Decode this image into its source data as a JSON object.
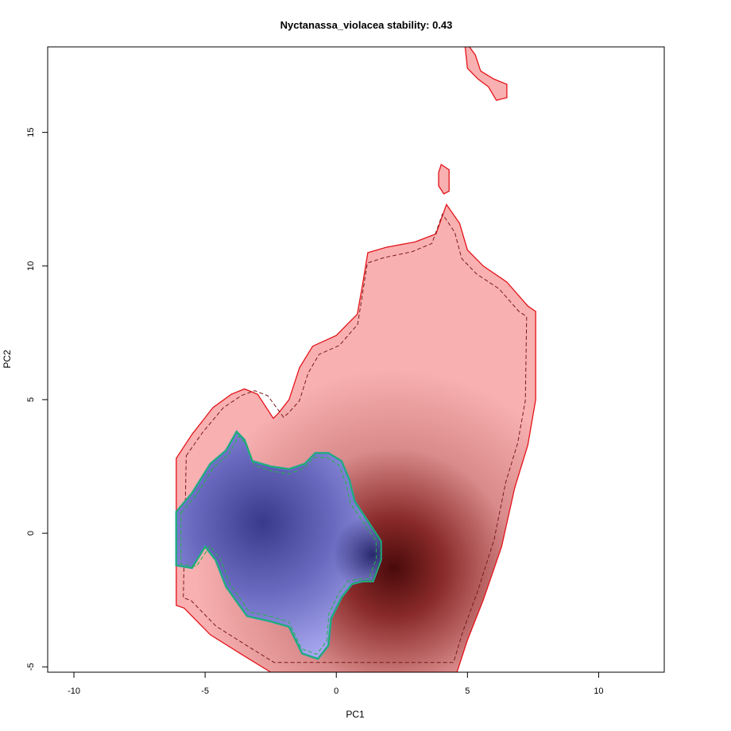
{
  "chart_data": {
    "type": "heatmap",
    "title": "Nyctanassa_violacea stability: 0.43",
    "xlabel": "PC1",
    "ylabel": "PC2",
    "xlim": [
      -11,
      12.5
    ],
    "ylim": [
      -5.2,
      18.2
    ],
    "xticks": [
      -10,
      -5,
      0,
      5,
      10
    ],
    "yticks": [
      -5,
      0,
      5,
      10,
      15
    ],
    "colors": {
      "red_fill": "#f8b0b0",
      "red_outline": "#e3131a",
      "red_dark": "#4a0a0a",
      "blue_fill": "#a8a8f0",
      "blue_dark": "#1c1c60",
      "green_outline": "#23b547",
      "teal_outline": "#2a9bc8"
    },
    "series": [
      {
        "name": "",
        "color": "red",
        "density_peak": {
          "x": 2.2,
          "y": -1.3
        },
        "outline": [
          [
            -6.1,
            2.8
          ],
          [
            -5.5,
            3.7
          ],
          [
            -4.7,
            4.7
          ],
          [
            -4.0,
            5.2
          ],
          [
            -3.5,
            5.4
          ],
          [
            -3.0,
            5.2
          ],
          [
            -2.6,
            4.6
          ],
          [
            -2.4,
            4.3
          ],
          [
            -2.2,
            4.5
          ],
          [
            -1.8,
            5.0
          ],
          [
            -1.4,
            6.2
          ],
          [
            -0.9,
            7.0
          ],
          [
            0.0,
            7.4
          ],
          [
            0.8,
            8.2
          ],
          [
            1.0,
            9.3
          ],
          [
            1.2,
            10.5
          ],
          [
            1.9,
            10.7
          ],
          [
            3.0,
            10.9
          ],
          [
            3.8,
            11.2
          ],
          [
            4.2,
            12.3
          ],
          [
            4.7,
            11.6
          ],
          [
            5.0,
            10.6
          ],
          [
            5.6,
            10.0
          ],
          [
            6.5,
            9.4
          ],
          [
            7.3,
            8.5
          ],
          [
            7.6,
            8.3
          ],
          [
            7.6,
            5.0
          ],
          [
            7.3,
            3.3
          ],
          [
            6.8,
            1.7
          ],
          [
            6.3,
            -0.5
          ],
          [
            5.6,
            -2.5
          ],
          [
            5.0,
            -4.0
          ],
          [
            4.6,
            -5.2
          ],
          [
            -2.5,
            -5.2
          ],
          [
            -3.5,
            -4.6
          ],
          [
            -4.8,
            -3.8
          ],
          [
            -5.8,
            -2.8
          ],
          [
            -6.1,
            -2.7
          ]
        ],
        "islands": [
          [
            [
              5.0,
              18.3
            ],
            [
              5.3,
              17.9
            ],
            [
              5.5,
              17.3
            ],
            [
              6.0,
              17.0
            ],
            [
              6.5,
              16.8
            ],
            [
              6.5,
              16.3
            ],
            [
              6.1,
              16.2
            ],
            [
              5.8,
              16.7
            ],
            [
              5.4,
              17.0
            ],
            [
              5.0,
              17.4
            ],
            [
              4.9,
              18.3
            ]
          ],
          [
            [
              4.0,
              13.8
            ],
            [
              4.3,
              13.6
            ],
            [
              4.3,
              12.8
            ],
            [
              4.1,
              12.7
            ],
            [
              3.9,
              13.0
            ],
            [
              3.9,
              13.5
            ]
          ]
        ]
      },
      {
        "name": "",
        "color": "blue",
        "density_peak": {
          "x": -2.8,
          "y": 0.4
        },
        "outline": [
          [
            -6.1,
            0.8
          ],
          [
            -5.5,
            1.5
          ],
          [
            -4.8,
            2.6
          ],
          [
            -4.2,
            3.1
          ],
          [
            -3.8,
            3.8
          ],
          [
            -3.5,
            3.5
          ],
          [
            -3.2,
            2.7
          ],
          [
            -2.5,
            2.5
          ],
          [
            -1.8,
            2.4
          ],
          [
            -1.2,
            2.6
          ],
          [
            -0.8,
            3.0
          ],
          [
            -0.3,
            3.0
          ],
          [
            0.2,
            2.7
          ],
          [
            0.5,
            2.0
          ],
          [
            0.7,
            1.2
          ],
          [
            1.3,
            0.3
          ],
          [
            1.7,
            -0.3
          ],
          [
            1.7,
            -1.0
          ],
          [
            1.4,
            -1.8
          ],
          [
            1.0,
            -1.8
          ],
          [
            0.6,
            -1.9
          ],
          [
            0.2,
            -2.4
          ],
          [
            -0.2,
            -3.2
          ],
          [
            -0.3,
            -4.2
          ],
          [
            -0.7,
            -4.7
          ],
          [
            -1.3,
            -4.5
          ],
          [
            -1.8,
            -3.5
          ],
          [
            -2.5,
            -3.3
          ],
          [
            -3.4,
            -3.1
          ],
          [
            -4.2,
            -2.0
          ],
          [
            -4.6,
            -1.0
          ],
          [
            -5.0,
            -0.5
          ],
          [
            -5.5,
            -1.3
          ],
          [
            -6.1,
            -1.2
          ]
        ]
      }
    ]
  }
}
